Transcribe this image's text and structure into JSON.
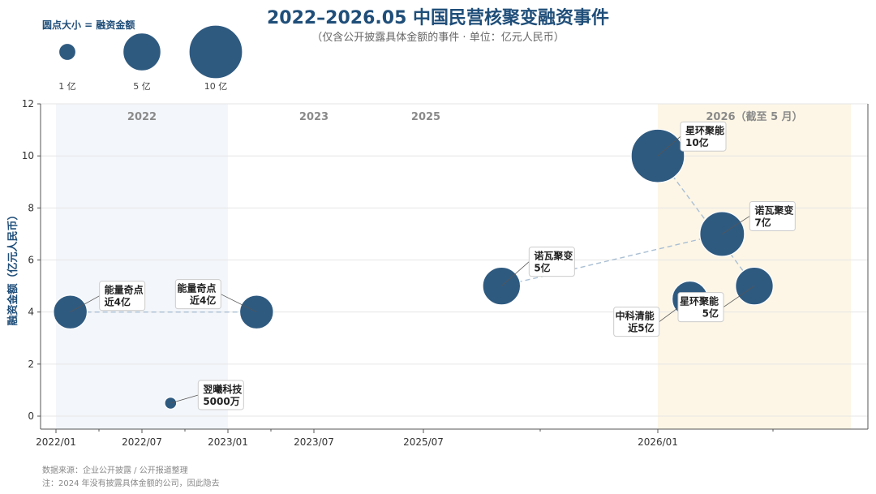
{
  "chart_data": {
    "type": "scatter",
    "title": "2022–2026.05 中国民营核聚变融资事件",
    "subtitle": "（仅含公开披露具体金额的事件 · 单位：亿元人民币）",
    "ylabel": "融资金额（亿元人民币）",
    "ylim": [
      0,
      12
    ],
    "yticks": [
      0,
      2,
      4,
      6,
      8,
      10,
      12
    ],
    "grid": true,
    "xticks": [
      {
        "label": "2022/01"
      },
      {
        "label": "2022/07"
      },
      {
        "label": "2023/01"
      },
      {
        "label": "2023/07"
      },
      {
        "label": "2025/07"
      },
      {
        "label": "2026/01"
      }
    ],
    "year_bands": [
      {
        "label": "2022",
        "shaded": true,
        "color": "#f3f6fa"
      },
      {
        "label": "2023",
        "shaded": false
      },
      {
        "label": "2025",
        "shaded": false
      },
      {
        "label": "2026（截至 5 月）",
        "shaded": true,
        "color": "#fdf6e6"
      }
    ],
    "size_legend": {
      "title": "圆点大小 = 融资金额",
      "items": [
        {
          "value": 1,
          "label": "1 亿"
        },
        {
          "value": 5,
          "label": "5 亿"
        },
        {
          "value": 10,
          "label": "10 亿"
        }
      ]
    },
    "points": [
      {
        "company": "能量奇点",
        "date": "2022-02",
        "value": 4,
        "label_amount": "近4亿"
      },
      {
        "company": "翌曦科技",
        "date": "2022-09",
        "value": 0.5,
        "label_amount": "5000万"
      },
      {
        "company": "能量奇点",
        "date": "2023-03",
        "value": 4,
        "label_amount": "近4亿"
      },
      {
        "company": "诺瓦聚变",
        "date": "2025-09",
        "value": 5,
        "label_amount": "5亿"
      },
      {
        "company": "星环聚能",
        "date": "2026-01",
        "value": 10,
        "label_amount": "10亿"
      },
      {
        "company": "中科清能",
        "date": "2026-02",
        "value": 4.5,
        "label_amount": "近5亿"
      },
      {
        "company": "诺瓦聚变",
        "date": "2026-03",
        "value": 7,
        "label_amount": "7亿"
      },
      {
        "company": "星环聚能",
        "date": "2026-04",
        "value": 5,
        "label_amount": "5亿"
      }
    ],
    "colors": {
      "marker": "#2f5a80",
      "connector": "#a9bfd4",
      "axis": "#555555",
      "grid": "#e6e6e6"
    }
  },
  "source": "数据来源：企业公开披露 / 公开报道整理",
  "note": "注：2024 年没有披露具体金额的公司，因此隐去"
}
